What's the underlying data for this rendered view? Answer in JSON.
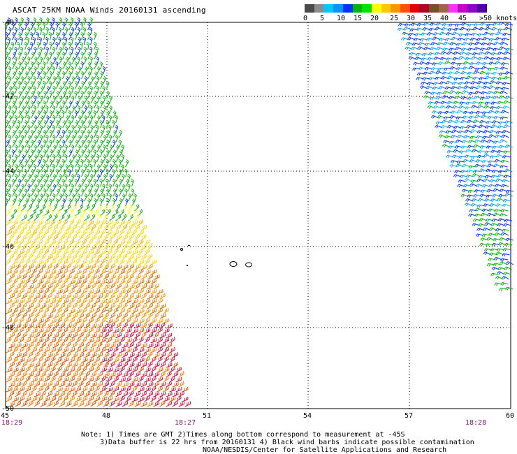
{
  "title": "ASCAT 25KM NOAA Winds 20160131 ascending",
  "colorbar": {
    "colors": [
      "#4a4a4a",
      "#8c8c8c",
      "#00c8ff",
      "#0096ff",
      "#0032ff",
      "#00b400",
      "#00e100",
      "#ffff00",
      "#ffc800",
      "#ff9600",
      "#ff5000",
      "#e60000",
      "#b40028",
      "#785028",
      "#a06446",
      "#ff32ff",
      "#c800c8",
      "#8c00c8",
      "#5000a0"
    ],
    "labels": [
      "0",
      "5",
      "10",
      "15",
      "20",
      "25",
      "30",
      "35",
      "40",
      "45",
      ">50 knots"
    ]
  },
  "axes": {
    "lat_labels": [
      "-40",
      "-42",
      "-44",
      "-46",
      "-48",
      "-50"
    ],
    "lon_labels": [
      "45",
      "48",
      "51",
      "54",
      "57",
      "60"
    ]
  },
  "times": {
    "left": "18:29",
    "middle": "18:27",
    "right": "18:28"
  },
  "notes": [
    "Note: 1) Times are GMT 2)Times along bottom correspond to measurement at -45S",
    "3)Data buffer is 22 hrs from 20160131 4) Black wind barbs indicate possible contamination",
    "NOAA/NESDIS/Center for Satellite Applications and Research"
  ]
}
